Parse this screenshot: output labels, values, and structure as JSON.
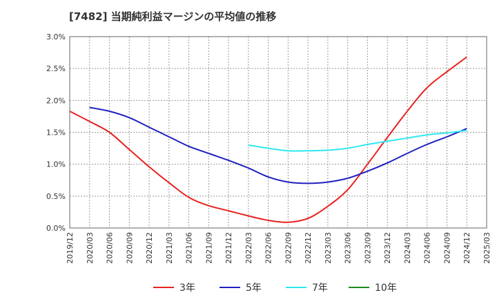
{
  "chart_data": {
    "type": "line",
    "title": "[7482]  当期純利益マージンの平均値の推移",
    "xlabel": "",
    "ylabel": "",
    "x_categories": [
      "2019/12",
      "2020/03",
      "2020/06",
      "2020/09",
      "2020/12",
      "2021/03",
      "2021/06",
      "2021/09",
      "2021/12",
      "2022/03",
      "2022/06",
      "2022/09",
      "2022/12",
      "2023/03",
      "2023/06",
      "2023/09",
      "2023/12",
      "2024/03",
      "2024/06",
      "2024/09",
      "2024/12",
      "2025/03"
    ],
    "y_ticks": [
      "0.0%",
      "0.5%",
      "1.0%",
      "1.5%",
      "2.0%",
      "2.5%",
      "3.0%"
    ],
    "ylim": [
      0,
      3.0
    ],
    "grid": true,
    "legend_position": "bottom",
    "series": [
      {
        "name": "3年",
        "color": "#e8221e",
        "x": [
          "2019/12",
          "2020/03",
          "2020/06",
          "2020/09",
          "2020/12",
          "2021/03",
          "2021/06",
          "2021/09",
          "2021/12",
          "2022/03",
          "2022/06",
          "2022/09",
          "2022/12",
          "2023/03",
          "2023/06",
          "2023/09",
          "2023/12",
          "2024/03",
          "2024/06",
          "2024/09",
          "2024/12"
        ],
        "values": [
          1.83,
          1.67,
          1.5,
          1.23,
          0.96,
          0.71,
          0.48,
          0.35,
          0.27,
          0.19,
          0.12,
          0.09,
          0.15,
          0.34,
          0.6,
          1.0,
          1.42,
          1.83,
          2.2,
          2.45,
          2.68
        ]
      },
      {
        "name": "5年",
        "color": "#1f1fc0",
        "x": [
          "2020/03",
          "2020/06",
          "2020/09",
          "2020/12",
          "2021/03",
          "2021/06",
          "2021/09",
          "2021/12",
          "2022/03",
          "2022/06",
          "2022/09",
          "2022/12",
          "2023/03",
          "2023/06",
          "2023/09",
          "2023/12",
          "2024/03",
          "2024/06",
          "2024/09",
          "2024/12"
        ],
        "values": [
          1.89,
          1.83,
          1.73,
          1.58,
          1.43,
          1.28,
          1.17,
          1.06,
          0.94,
          0.8,
          0.72,
          0.7,
          0.72,
          0.78,
          0.89,
          1.02,
          1.17,
          1.31,
          1.43,
          1.56
        ]
      },
      {
        "name": "7年",
        "color": "#2ee8f0",
        "x": [
          "2022/03",
          "2022/06",
          "2022/09",
          "2022/12",
          "2023/03",
          "2023/06",
          "2023/09",
          "2023/12",
          "2024/03",
          "2024/06",
          "2024/09",
          "2024/12"
        ],
        "values": [
          1.3,
          1.25,
          1.21,
          1.21,
          1.22,
          1.25,
          1.31,
          1.36,
          1.41,
          1.46,
          1.49,
          1.53
        ]
      },
      {
        "name": "10年",
        "color": "#1e8a1e",
        "x": [],
        "values": []
      }
    ]
  }
}
